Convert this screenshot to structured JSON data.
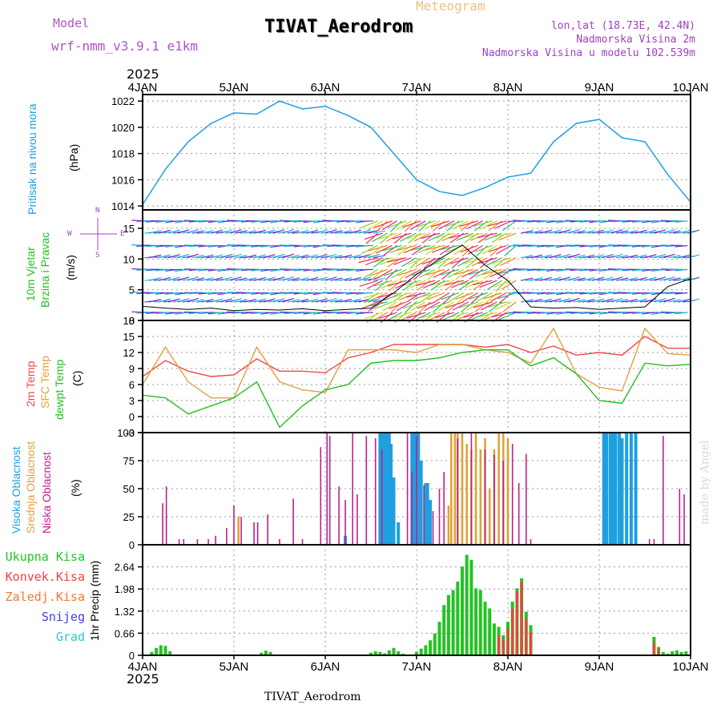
{
  "header": {
    "model_label": "Model",
    "model_name": "wrf-nmm_v3.9.1 e1km",
    "subtitle": "Meteogram",
    "title": "TIVAT_Aerodrom",
    "lonlat": "lon,lat (18.73E, 42.4N)",
    "elevation": "Nadmorska Visina 2m",
    "model_elevation": "Nadmorska Visina u modelu 102.539m",
    "year_top": "2025",
    "year_bottom": "2025",
    "footer": "TIVAT_Aerodrom",
    "credit": "made by Angel"
  },
  "colors": {
    "pressure": "#1e9ee0",
    "temp2m": "#f04848",
    "sfctemp": "#e0a040",
    "dewpoint": "#20c020",
    "high_cloud": "#1ea0e0",
    "mid_cloud": "#e0a030",
    "low_cloud": "#c0208c",
    "total_precip": "#22c422",
    "convective": "#f04040",
    "stratiform": "#f07830",
    "snow": "#4040e0",
    "graupel": "#30c8c8",
    "model_label": "#b050d0",
    "meta": "#a040c0",
    "meteogram": "#f0c080"
  },
  "axis_x": {
    "labels": [
      "4JAN",
      "5JAN",
      "6JAN",
      "7JAN",
      "8JAN",
      "9JAN",
      "10JAN"
    ]
  },
  "panels": {
    "pressure": {
      "label": "Pritisak na nivou mora",
      "unit": "(hPa)"
    },
    "wind": {
      "label1": "10m Vjetar",
      "label2": "Brzina i Pravac",
      "unit": "(m/s)",
      "compass": [
        "N",
        "S",
        "W",
        "E"
      ]
    },
    "temp": {
      "label1": "2m Temp",
      "label2": "SFC Temp",
      "label3": "dewpt Temp",
      "unit": "(C)"
    },
    "cloud": {
      "label1": "Visoka Oblacnost",
      "label2": "Srednja Oblacnost",
      "label3": "Niska Oblacnost",
      "unit": "(%)"
    },
    "precip": {
      "unit": "1hr Precip (mm)",
      "legend": [
        "Ukupna Kisa",
        "Konvek.Kisa",
        "Zaledj.Kisa",
        "Snijeg",
        "Grad"
      ]
    }
  },
  "chart_data": [
    {
      "type": "line",
      "name": "pressure",
      "x_range": [
        0,
        6
      ],
      "ylim": [
        1013.7,
        1022.5
      ],
      "yticks": [
        1014,
        1016,
        1018,
        1020,
        1022
      ],
      "x": [
        0,
        0.25,
        0.5,
        0.75,
        1,
        1.25,
        1.5,
        1.75,
        2,
        2.25,
        2.5,
        2.75,
        3,
        3.25,
        3.5,
        3.75,
        4,
        4.25,
        4.5,
        4.75,
        5,
        5.25,
        5.5,
        5.75,
        6
      ],
      "y": [
        1014.1,
        1016.8,
        1018.9,
        1020.3,
        1021.1,
        1021.0,
        1022.0,
        1021.4,
        1021.6,
        1020.9,
        1020.0,
        1018.0,
        1016.0,
        1015.1,
        1014.8,
        1015.4,
        1016.2,
        1016.5,
        1018.9,
        1020.3,
        1020.6,
        1019.2,
        1018.9,
        1016.4,
        1014.3
      ],
      "grid": true
    },
    {
      "type": "line",
      "name": "wind",
      "x_range": [
        0,
        6
      ],
      "ylim": [
        0,
        18
      ],
      "yticks": [
        0,
        5,
        10,
        15
      ],
      "series": [
        {
          "name": "10m wind speed",
          "x": [
            0,
            0.25,
            0.5,
            0.75,
            1,
            1.25,
            1.5,
            1.75,
            2,
            2.25,
            2.5,
            2.75,
            3,
            3.25,
            3.5,
            3.75,
            4,
            4.25,
            4.5,
            4.75,
            5,
            5.25,
            5.5,
            5.75,
            6
          ],
          "values": [
            2.3,
            2.0,
            1.8,
            2.0,
            1.6,
            1.8,
            1.7,
            1.9,
            1.6,
            1.8,
            2.0,
            4.5,
            7.5,
            10.0,
            12.3,
            9.0,
            6.5,
            2.2,
            2.0,
            2.1,
            1.8,
            2.0,
            2.2,
            5.5,
            6.8
          ]
        }
      ],
      "grid": true
    },
    {
      "type": "line",
      "name": "temperature",
      "x_range": [
        0,
        6
      ],
      "ylim": [
        -3,
        18
      ],
      "yticks": [
        -3,
        0,
        3,
        6,
        9,
        12,
        15,
        18
      ],
      "x": [
        0,
        0.25,
        0.5,
        0.75,
        1,
        1.25,
        1.5,
        1.75,
        2,
        2.25,
        2.5,
        2.75,
        3,
        3.25,
        3.5,
        3.75,
        4,
        4.25,
        4.5,
        4.75,
        5,
        5.25,
        5.5,
        5.75,
        6
      ],
      "series": [
        {
          "name": "2m Temp",
          "values": [
            7.5,
            10.5,
            8.5,
            7.5,
            7.8,
            10.8,
            8.5,
            8.5,
            8.2,
            11.0,
            12.0,
            13.5,
            13.5,
            13.5,
            13.5,
            13.0,
            13.5,
            12.0,
            13.2,
            11.5,
            12.0,
            11.5,
            15.0,
            12.8,
            12.8
          ]
        },
        {
          "name": "SFC Temp",
          "values": [
            6.0,
            13.0,
            6.5,
            3.5,
            3.5,
            13.0,
            6.5,
            5.0,
            4.5,
            12.5,
            12.5,
            12.5,
            12.0,
            13.5,
            13.5,
            12.5,
            12.0,
            10.0,
            16.5,
            8.0,
            5.5,
            4.8,
            16.5,
            11.8,
            11.5
          ]
        },
        {
          "name": "dewpt Temp",
          "values": [
            4.0,
            3.5,
            0.5,
            2.0,
            3.5,
            6.5,
            -2.0,
            2.0,
            5.0,
            6.0,
            10.0,
            10.5,
            10.5,
            11.0,
            12.0,
            12.5,
            12.5,
            9.5,
            11.0,
            8.0,
            3.0,
            2.5,
            10.0,
            9.5,
            9.8
          ]
        }
      ],
      "grid": true
    },
    {
      "type": "bar",
      "name": "cloud cover",
      "x_range": [
        0,
        6
      ],
      "ylim": [
        0,
        100
      ],
      "yticks": [
        0,
        25,
        50,
        75,
        100
      ],
      "series": [
        {
          "name": "Visoka Oblacnost",
          "x": [
            2.22,
            2.6,
            2.62,
            2.65,
            2.67,
            2.7,
            2.72,
            2.75,
            2.8,
            2.95,
            2.97,
            3.0,
            3.02,
            3.05,
            3.1,
            3.12,
            3.15,
            5.05,
            5.08,
            5.12,
            5.15,
            5.18,
            5.22,
            5.25,
            5.3,
            5.35,
            5.4
          ],
          "values": [
            8,
            100,
            100,
            100,
            100,
            100,
            90,
            60,
            20,
            100,
            100,
            100,
            100,
            75,
            55,
            55,
            40,
            100,
            100,
            100,
            100,
            100,
            100,
            95,
            100,
            100,
            100
          ]
        },
        {
          "name": "Srednja Oblacnost",
          "x": [
            1.05,
            3.35,
            3.38,
            3.42,
            3.45,
            3.5,
            3.55,
            3.6,
            3.65,
            3.7,
            3.75,
            3.8,
            3.85,
            3.9,
            3.95,
            4.0
          ],
          "values": [
            25,
            35,
            100,
            100,
            100,
            100,
            90,
            85,
            100,
            85,
            95,
            50,
            85,
            100,
            100,
            95
          ]
        },
        {
          "name": "Niska Oblacnost",
          "x": [
            0.22,
            0.26,
            0.4,
            0.45,
            0.6,
            0.72,
            0.8,
            0.92,
            1.0,
            1.08,
            1.22,
            1.26,
            1.37,
            1.5,
            1.65,
            1.75,
            1.95,
            2.02,
            2.05,
            2.15,
            2.22,
            2.3,
            2.35,
            2.45,
            2.55,
            2.62,
            2.9,
            2.95,
            3.0,
            3.08,
            3.18,
            3.25,
            3.3,
            3.45,
            3.6,
            3.75,
            3.85,
            3.95,
            4.05,
            4.12,
            4.2,
            4.25,
            5.55,
            5.6,
            5.7,
            5.88,
            5.93
          ],
          "values": [
            37,
            52,
            5,
            5,
            5,
            5,
            8,
            15,
            35,
            25,
            20,
            20,
            27,
            5,
            41,
            5,
            87,
            100,
            97,
            52,
            40,
            100,
            45,
            97,
            95,
            85,
            100,
            65,
            97,
            53,
            30,
            50,
            65,
            95,
            100,
            85,
            80,
            75,
            90,
            55,
            81,
            5,
            5,
            5,
            97,
            50,
            45
          ]
        }
      ],
      "grid": true
    },
    {
      "type": "bar",
      "name": "1hr precipitation",
      "x_range": [
        0,
        6
      ],
      "ylim": [
        0,
        3.3
      ],
      "yticks": [
        0,
        0.66,
        1.32,
        1.98,
        2.64
      ],
      "x": [
        0.1,
        0.15,
        0.2,
        0.25,
        0.3,
        1.3,
        1.35,
        1.4,
        2.5,
        2.55,
        2.6,
        2.65,
        2.7,
        2.75,
        2.8,
        2.85,
        3.0,
        3.05,
        3.1,
        3.15,
        3.2,
        3.25,
        3.3,
        3.35,
        3.4,
        3.45,
        3.5,
        3.55,
        3.6,
        3.65,
        3.7,
        3.75,
        3.8,
        3.85,
        3.9,
        3.95,
        4.0,
        4.05,
        4.1,
        4.15,
        4.2,
        4.25,
        5.6,
        5.65,
        5.7,
        5.75,
        5.8,
        5.85,
        5.9,
        5.95
      ],
      "series": [
        {
          "name": "Ukupna Kisa",
          "values": [
            0.1,
            0.22,
            0.3,
            0.28,
            0.12,
            0.08,
            0.14,
            0.1,
            0.08,
            0.12,
            0.1,
            0.06,
            0.15,
            0.22,
            0.12,
            0.05,
            0.1,
            0.2,
            0.3,
            0.45,
            0.65,
            1.0,
            1.5,
            1.8,
            1.95,
            2.2,
            2.65,
            3.0,
            2.85,
            2.0,
            1.95,
            1.6,
            1.4,
            0.95,
            0.85,
            0.6,
            1.0,
            1.6,
            2.0,
            2.3,
            1.3,
            0.9,
            0.55,
            0.25,
            0.1,
            0.05,
            0.12,
            0.15,
            0.1,
            0.12
          ]
        },
        {
          "name": "Konvek.Kisa",
          "values": [
            0,
            0,
            0,
            0,
            0,
            0,
            0,
            0,
            0,
            0,
            0,
            0,
            0,
            0,
            0,
            0,
            0,
            0,
            0,
            0,
            0,
            0,
            0,
            0,
            0,
            0,
            0,
            0,
            0,
            0,
            0,
            0,
            0,
            0,
            0.6,
            0.5,
            0.8,
            1.4,
            1.9,
            2.2,
            1.1,
            0.7,
            0.4,
            0.2,
            0,
            0,
            0,
            0,
            0,
            0
          ]
        }
      ],
      "grid": true
    }
  ]
}
